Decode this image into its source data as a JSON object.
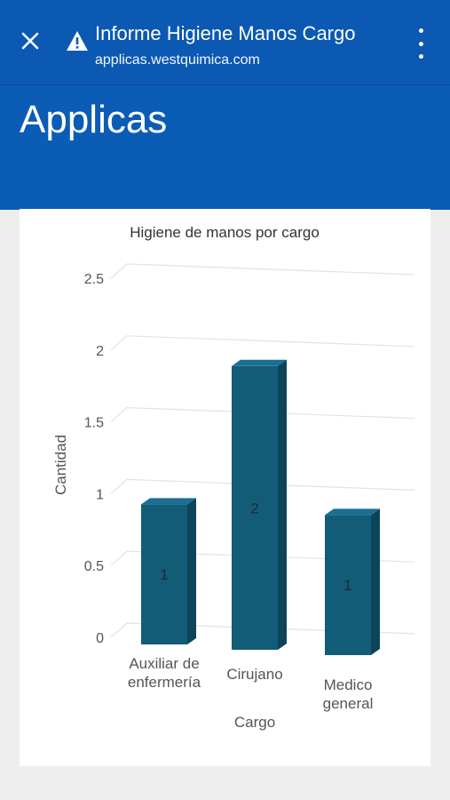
{
  "browser": {
    "tab_title": "Informe Higiene Manos Cargo",
    "url": "applicas.westquimica.com"
  },
  "app": {
    "title": "Applicas"
  },
  "colors": {
    "bar_bg": "#0b59b3",
    "bar_front": "#135c78",
    "bar_side": "#0d4459",
    "bar_top": "#1a7094"
  },
  "icons": {
    "close": "close-icon",
    "warning": "warning-icon",
    "menu": "more-vert-icon"
  },
  "chart_data": {
    "type": "bar",
    "title": "Higiene de manos por cargo",
    "xlabel": "Cargo",
    "ylabel": "Cantidad",
    "categories": [
      "Auxiliar de enfermería",
      "Cirujano",
      "Medico general"
    ],
    "category_lines": [
      [
        "Auxiliar de",
        "enfermería"
      ],
      [
        "Cirujano"
      ],
      [
        "Medico",
        "general"
      ]
    ],
    "values": [
      1,
      2,
      1
    ],
    "data_labels": [
      "1",
      "2",
      "1"
    ],
    "yticks": [
      "0",
      "0.5",
      "1",
      "1.5",
      "2",
      "2.5"
    ],
    "ylim": [
      0,
      2.5
    ],
    "grid": true,
    "style": "3d"
  }
}
